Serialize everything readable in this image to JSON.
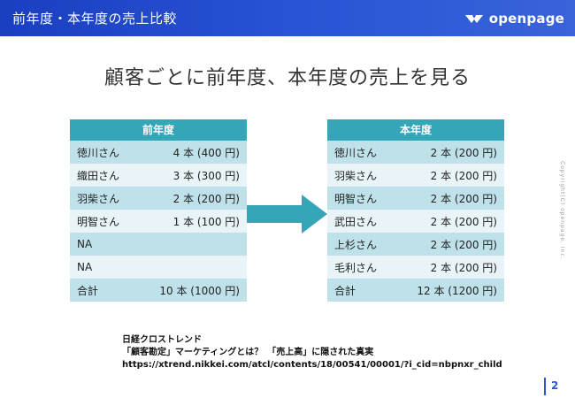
{
  "header": {
    "title": "前年度・本年度の売上比較",
    "brand": "openpage"
  },
  "slide_title": "顧客ごとに前年度、本年度の売上を見る",
  "prev_table": {
    "title": "前年度",
    "rows": [
      {
        "name": "徳川さん",
        "value": "4 本 (400 円)"
      },
      {
        "name": "織田さん",
        "value": "3 本 (300 円)"
      },
      {
        "name": "羽柴さん",
        "value": "2 本 (200 円)"
      },
      {
        "name": "明智さん",
        "value": "1 本 (100 円)"
      },
      {
        "name": "NA",
        "value": ""
      },
      {
        "name": "NA",
        "value": ""
      },
      {
        "name": "合計",
        "value": "10 本 (1000 円)"
      }
    ]
  },
  "curr_table": {
    "title": "本年度",
    "rows": [
      {
        "name": "徳川さん",
        "value": "2 本 (200 円)"
      },
      {
        "name": "羽柴さん",
        "value": "2 本 (200 円)"
      },
      {
        "name": "明智さん",
        "value": "2 本 (200 円)"
      },
      {
        "name": "武田さん",
        "value": "2 本 (200 円)"
      },
      {
        "name": "上杉さん",
        "value": "2 本 (200 円)"
      },
      {
        "name": "毛利さん",
        "value": "2 本 (200 円)"
      },
      {
        "name": "合計",
        "value": "12 本 (1200 円)"
      }
    ]
  },
  "source": {
    "line1": "日経クロストレンド",
    "line2": "「顧客勘定」マーケティングとは？　「売上高」に隠された真実",
    "line3": "https://xtrend.nikkei.com/atcl/contents/18/00541/00001/?i_cid=nbpnxr_child"
  },
  "copyright": "Copyright(C) openpage, Inc.",
  "page_number": "2",
  "colors": {
    "header": "#2b57d6",
    "table_head": "#35a6b8",
    "row_dark": "#bfe2ea",
    "row_light": "#e8f4f7",
    "arrow": "#35a6b8"
  }
}
